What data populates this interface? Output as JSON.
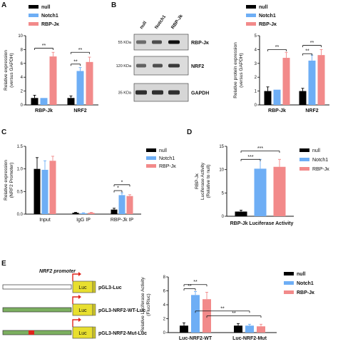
{
  "colors": {
    "null": "#000000",
    "notch1": "#6eaef5",
    "rbp": "#f28a8a",
    "luc_box": "#e8df2f",
    "promoter_bar": "#7cb060",
    "mut_site": "#e0261d",
    "arrow": "#e0261d"
  },
  "panels": {
    "A": {
      "label": "A",
      "legend": [
        "null",
        "Notch1",
        "RBP-Jκ"
      ],
      "ylabel": [
        "Relative expression",
        "(versus GAPDH)"
      ],
      "chart_data": {
        "type": "bar",
        "categories": [
          "RBP-Jk",
          "NRF2"
        ],
        "series": [
          {
            "name": "null",
            "values": [
              1.0,
              1.0
            ],
            "err": [
              0.4,
              0.3
            ]
          },
          {
            "name": "Notch1",
            "values": [
              1.0,
              4.9
            ],
            "err": [
              0.0,
              0.5
            ]
          },
          {
            "name": "RBP-Jκ",
            "values": [
              7.0,
              6.2
            ],
            "err": [
              0.6,
              0.7
            ]
          }
        ],
        "ylim": [
          0,
          10
        ],
        "yticks": [
          "0",
          "2",
          "4",
          "6",
          "8",
          "10"
        ],
        "sig": [
          {
            "text": "**",
            "from": [
              0,
              0
            ],
            "to": [
              0,
              2
            ],
            "y": 8.2
          },
          {
            "text": "**",
            "from": [
              1,
              0
            ],
            "to": [
              1,
              1
            ],
            "y": 5.9
          },
          {
            "text": "**",
            "from": [
              1,
              0
            ],
            "to": [
              1,
              2
            ],
            "y": 7.6
          }
        ]
      }
    },
    "B": {
      "label": "B",
      "lanes": [
        "null",
        "Notch1",
        "RBP-Jk"
      ],
      "bands": [
        {
          "kda": "55 KDa",
          "name": "RBP-Jκ"
        },
        {
          "kda": "120 KDa",
          "name": "NRF2"
        },
        {
          "kda": "35 KDa",
          "name": "GAPDH"
        }
      ],
      "legend": [
        "null",
        "Notch1",
        "RBP-Jκ"
      ],
      "ylabel": [
        "Relative protein expression",
        "(versus GAPDH)"
      ],
      "chart_data": {
        "type": "bar",
        "categories": [
          "RBP-Jk",
          "NRF2"
        ],
        "series": [
          {
            "name": "null",
            "values": [
              1.0,
              1.0
            ],
            "err": [
              0.3,
              0.2
            ]
          },
          {
            "name": "Notch1",
            "values": [
              1.1,
              3.2
            ],
            "err": [
              0.0,
              0.4
            ]
          },
          {
            "name": "RBP-Jκ",
            "values": [
              3.4,
              3.6
            ],
            "err": [
              0.4,
              0.4
            ]
          }
        ],
        "ylim": [
          0,
          5
        ],
        "yticks": [
          "0",
          "1",
          "2",
          "3",
          "4",
          "5"
        ],
        "sig": [
          {
            "text": "**",
            "from": [
              0,
              0
            ],
            "to": [
              0,
              2
            ],
            "y": 4.0
          },
          {
            "text": "**",
            "from": [
              1,
              0
            ],
            "to": [
              1,
              1
            ],
            "y": 3.7
          },
          {
            "text": "**",
            "from": [
              1,
              0
            ],
            "to": [
              1,
              2
            ],
            "y": 4.3
          }
        ]
      }
    },
    "C": {
      "label": "C",
      "legend": [
        "null",
        "Notch1",
        "RBP-Jκ"
      ],
      "ylabel": [
        "Relative expression",
        "(NRF2 Promoter)"
      ],
      "chart_data": {
        "type": "bar",
        "categories": [
          "Input",
          "IgG IP",
          "RBP-Jk IP"
        ],
        "series": [
          {
            "name": "null",
            "values": [
              1.0,
              0.03,
              0.1
            ],
            "err": [
              0.25,
              0.01,
              0.03
            ]
          },
          {
            "name": "Notch1",
            "values": [
              0.98,
              0.02,
              0.42
            ],
            "err": [
              0.2,
              0.01,
              0.05
            ]
          },
          {
            "name": "RBP-Jκ",
            "values": [
              1.18,
              0.03,
              0.4
            ],
            "err": [
              0.1,
              0.01,
              0.03
            ]
          }
        ],
        "ylim": [
          0,
          1.5
        ],
        "yticks": [
          "0.0",
          "0.5",
          "1.0",
          "1.5"
        ],
        "sig": [
          {
            "text": "*",
            "from": [
              2,
              0
            ],
            "to": [
              2,
              1
            ],
            "y": 0.52
          },
          {
            "text": "*",
            "from": [
              2,
              0
            ],
            "to": [
              2,
              2
            ],
            "y": 0.65
          }
        ]
      }
    },
    "D": {
      "label": "D",
      "legend": [
        "null",
        "Notch1",
        "RBP-Jκ"
      ],
      "ylabel": [
        "RBP-Jκ",
        "Luciferase Activity",
        "(Relative to null)"
      ],
      "xlabel": "RBP-Jk Luciferase Activity",
      "chart_data": {
        "type": "bar",
        "categories": [
          "RBP-Jk Luciferase Activity"
        ],
        "series": [
          {
            "name": "null",
            "values": [
              1.0
            ],
            "err": [
              0.3
            ]
          },
          {
            "name": "Notch1",
            "values": [
              10.2
            ],
            "err": [
              2.0
            ]
          },
          {
            "name": "RBP-Jκ",
            "values": [
              10.6
            ],
            "err": [
              1.6
            ]
          }
        ],
        "ylim": [
          0,
          15
        ],
        "yticks": [
          "0",
          "5",
          "10",
          "15"
        ],
        "sig": [
          {
            "text": "***",
            "from": [
              0,
              0
            ],
            "to": [
              0,
              1
            ],
            "y": 12.2
          },
          {
            "text": "***",
            "from": [
              0,
              0
            ],
            "to": [
              0,
              2
            ],
            "y": 14.0
          }
        ]
      }
    },
    "E": {
      "label": "E",
      "promoter_title": "NRF2 promoter",
      "constructs": [
        {
          "name": "pGL3-Luc",
          "luc": "Luc",
          "promoter": false,
          "mut": false
        },
        {
          "name": "pGL3-NRF2-WT-Luc",
          "luc": "Luc",
          "promoter": true,
          "mut": false
        },
        {
          "name": "pGL3-NRF2-Mut-Luc",
          "luc": "Luc",
          "promoter": true,
          "mut": true
        }
      ],
      "legend": [
        "null",
        "Notch1",
        "RBP-Jκ"
      ],
      "ylabel": [
        "Relative Luciferase Activity",
        "(Fluc/Rluc)"
      ],
      "chart_data": {
        "type": "bar",
        "categories": [
          "Luc-NRF2-WT",
          "Luc-NRF2-Mut"
        ],
        "series": [
          {
            "name": "null",
            "values": [
              1.0,
              1.0
            ],
            "err": [
              0.4,
              0.3
            ]
          },
          {
            "name": "Notch1",
            "values": [
              5.4,
              1.0
            ],
            "err": [
              0.5,
              0.2
            ]
          },
          {
            "name": "RBP-Jκ",
            "values": [
              4.8,
              0.9
            ],
            "err": [
              1.0,
              0.3
            ]
          }
        ],
        "ylim": [
          0,
          8
        ],
        "yticks": [
          "0",
          "2",
          "4",
          "6",
          "8"
        ],
        "sig": [
          {
            "text": "**",
            "from": [
              0,
              0
            ],
            "to": [
              0,
              1
            ],
            "y": 6.3
          },
          {
            "text": "**",
            "from": [
              0,
              0
            ],
            "to": [
              0,
              2
            ],
            "y": 6.9
          },
          {
            "text": "**",
            "from": [
              0,
              1
            ],
            "to": [
              1,
              1
            ],
            "y": 3.1
          },
          {
            "text": "**",
            "from": [
              0,
              2
            ],
            "to": [
              1,
              2
            ],
            "y": 2.4
          }
        ]
      }
    }
  }
}
